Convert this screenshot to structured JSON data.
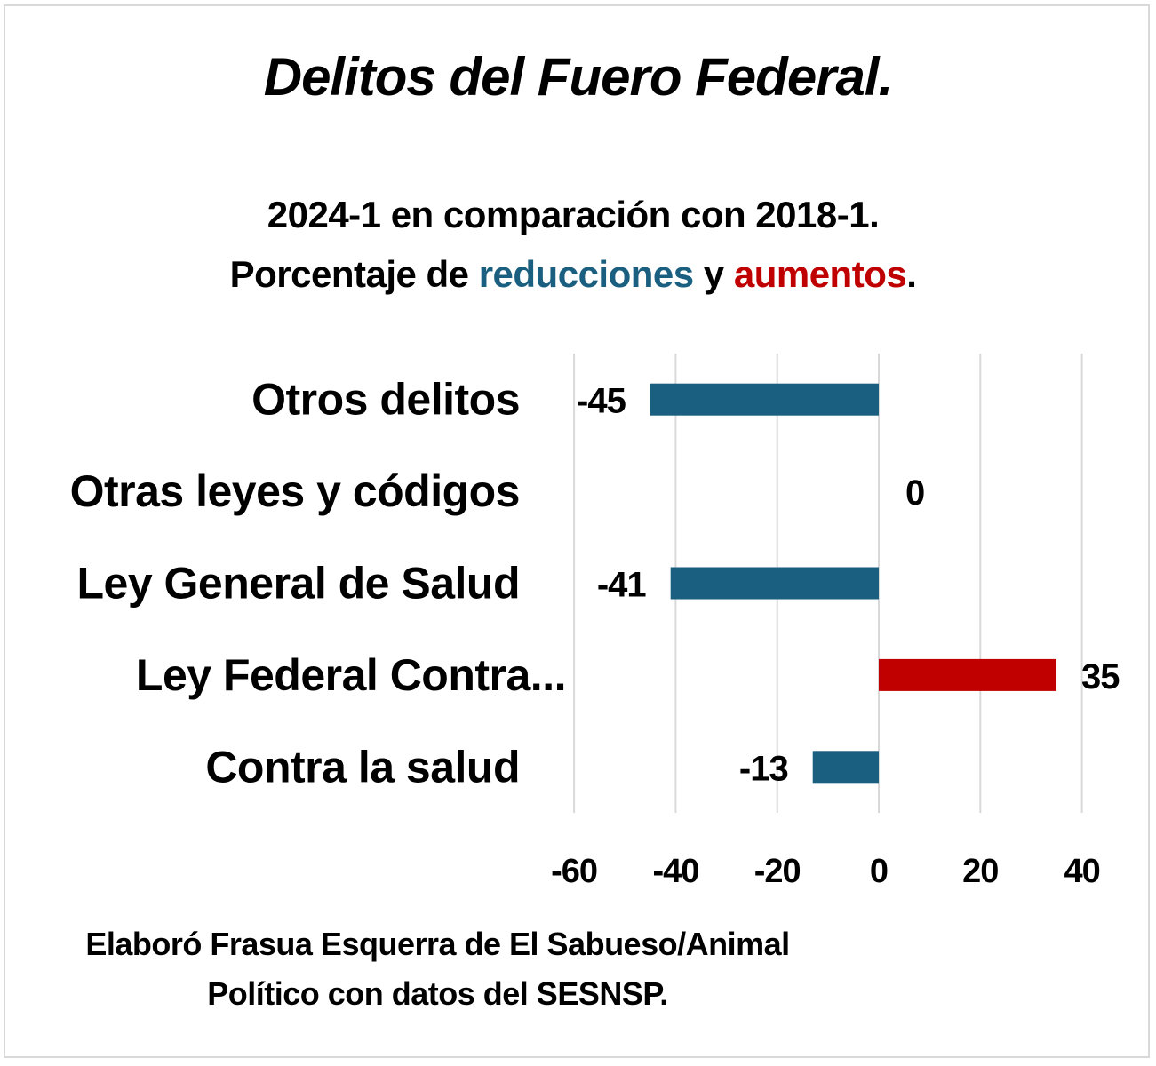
{
  "chart_data": {
    "type": "bar",
    "orientation": "horizontal",
    "title": "Delitos del Fuero Federal.",
    "subtitle_line1": "2024-1 en comparación con 2018-1.",
    "subtitle_line2": {
      "prefix": "Porcentaje de ",
      "reductions": "reducciones",
      "middle": " y ",
      "increases": "aumentos",
      "suffix": "."
    },
    "categories": [
      "Otros delitos",
      "Otras leyes y códigos",
      "Ley General de Salud",
      "Ley Federal Contra...",
      "Contra la salud"
    ],
    "values": [
      -45,
      0,
      -41,
      35,
      -13
    ],
    "data_labels": [
      "-45",
      "0",
      "-41",
      "35",
      "-13"
    ],
    "xlim": [
      -60,
      45
    ],
    "xticks": [
      -60,
      -40,
      -20,
      0,
      20,
      40
    ],
    "xtick_labels": [
      "-60",
      "-40",
      "-20",
      "0",
      "20",
      "40"
    ],
    "xlabel": "",
    "ylabel": "",
    "grid": "vertical",
    "legend": "none",
    "colors": {
      "negative": "#1a5f80",
      "positive": "#c00000",
      "grid": "#d9d9d9"
    }
  },
  "footer": {
    "line1": "Elaboró Frasua Esquerra de El Sabueso/Animal",
    "line2": "Político con datos del SESNSP."
  }
}
